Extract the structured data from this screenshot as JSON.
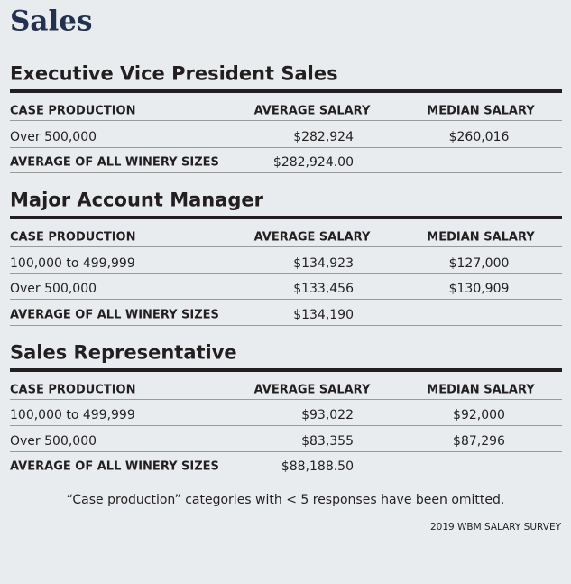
{
  "title": "Sales",
  "sections": [
    {
      "heading": "Executive Vice President Sales",
      "columns": [
        "CASE PRODUCTION",
        "AVERAGE SALARY",
        "MEDIAN SALARY"
      ],
      "rows": [
        [
          "Over 500,000",
          "$282,924",
          "$260,016"
        ]
      ],
      "average": [
        "AVERAGE OF ALL WINERY SIZES",
        "$282,924.00"
      ]
    },
    {
      "heading": "Major Account Manager",
      "columns": [
        "CASE PRODUCTION",
        "AVERAGE SALARY",
        "MEDIAN SALARY"
      ],
      "rows": [
        [
          "100,000 to 499,999",
          "$134,923",
          "$127,000"
        ],
        [
          "Over 500,000",
          "$133,456",
          "$130,909"
        ]
      ],
      "average": [
        "AVERAGE OF ALL WINERY SIZES",
        "$134,190"
      ]
    },
    {
      "heading": "Sales Representative",
      "columns": [
        "CASE PRODUCTION",
        "AVERAGE SALARY",
        "MEDIAN SALARY"
      ],
      "rows": [
        [
          "100,000 to 499,999",
          "$93,022",
          "$92,000"
        ],
        [
          "Over 500,000",
          "$83,355",
          "$87,296"
        ]
      ],
      "average": [
        "AVERAGE OF ALL WINERY SIZES",
        "$88,188.50"
      ]
    }
  ],
  "footnote": "“Case production” categories with < 5 responses have been omitted.",
  "source": "2019 WBM SALARY SURVEY"
}
